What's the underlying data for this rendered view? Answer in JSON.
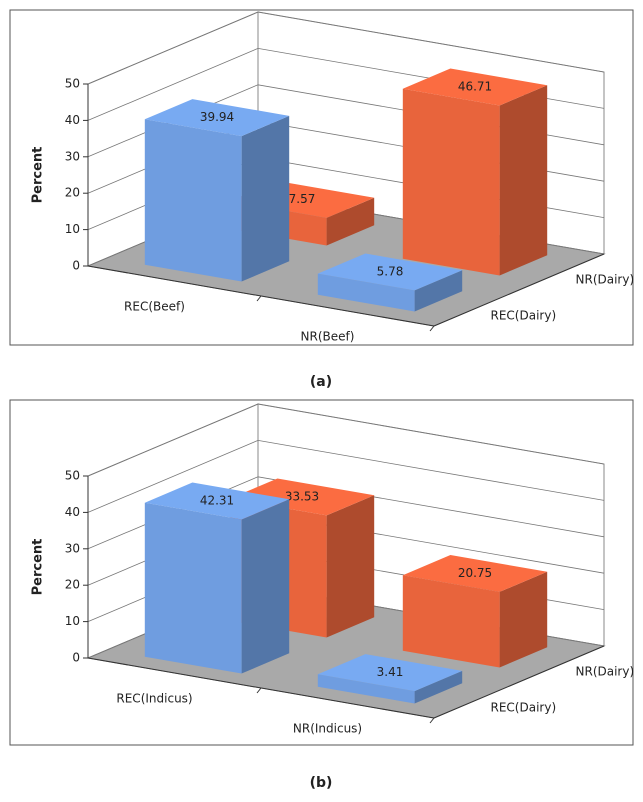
{
  "chart_data": [
    {
      "type": "bar3d",
      "ylabel": "Percent",
      "caption": "(a)",
      "categories": [
        "REC(Beef)",
        "NR(Beef)"
      ],
      "series": [
        {
          "name": "REC(Dairy)",
          "color": "#6f9de0",
          "values": [
            39.94,
            5.78
          ]
        },
        {
          "name": "NR(Dairy)",
          "color": "#e8643c",
          "values": [
            7.57,
            46.71
          ]
        }
      ],
      "ylim": [
        0,
        50
      ],
      "yticks": [
        0,
        10,
        20,
        30,
        40,
        50
      ],
      "grid": true
    },
    {
      "type": "bar3d",
      "ylabel": "Percent",
      "caption": "(b)",
      "categories": [
        "REC(Indicus)",
        "NR(Indicus)"
      ],
      "series": [
        {
          "name": "REC(Dairy)",
          "color": "#6f9de0",
          "values": [
            42.31,
            3.41
          ]
        },
        {
          "name": "NR(Dairy)",
          "color": "#e8643c",
          "values": [
            33.53,
            20.75
          ]
        }
      ],
      "ylim": [
        0,
        50
      ],
      "yticks": [
        0,
        10,
        20,
        30,
        40,
        50
      ],
      "grid": true
    }
  ]
}
